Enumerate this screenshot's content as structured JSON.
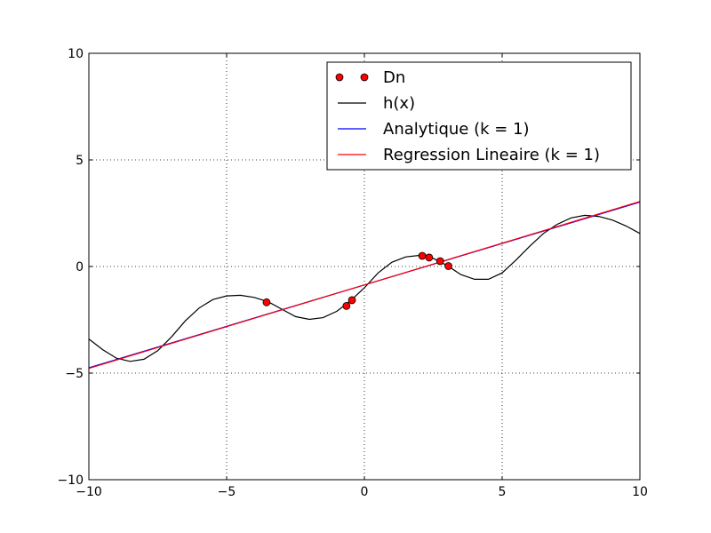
{
  "chart_data": {
    "type": "line",
    "title": "",
    "xlabel": "",
    "ylabel": "",
    "xlim": [
      -10,
      10
    ],
    "ylim": [
      -10,
      10
    ],
    "xticks": [
      -10,
      -5,
      0,
      5,
      10
    ],
    "yticks": [
      -10,
      -5,
      0,
      5,
      10
    ],
    "xtick_labels": [
      "−10",
      "−5",
      "0",
      "5",
      "10"
    ],
    "ytick_labels": [
      "−10",
      "−5",
      "0",
      "5",
      "10"
    ],
    "grid": true,
    "legend_position": "top-right",
    "series": [
      {
        "name": "Dn",
        "kind": "scatter",
        "color": "#ff0000",
        "points": [
          [
            -3.55,
            -1.68
          ],
          [
            -0.65,
            -1.85
          ],
          [
            -0.45,
            -1.58
          ],
          [
            2.1,
            0.5
          ],
          [
            2.35,
            0.42
          ],
          [
            2.75,
            0.25
          ],
          [
            3.05,
            0.02
          ]
        ]
      },
      {
        "name": "h(x)",
        "kind": "line",
        "color": "#000000",
        "points": [
          [
            -10,
            -3.4
          ],
          [
            -9.5,
            -3.9
          ],
          [
            -9.0,
            -4.3
          ],
          [
            -8.5,
            -4.45
          ],
          [
            -8.0,
            -4.35
          ],
          [
            -7.5,
            -3.95
          ],
          [
            -7.0,
            -3.3
          ],
          [
            -6.5,
            -2.55
          ],
          [
            -6.0,
            -1.95
          ],
          [
            -5.5,
            -1.55
          ],
          [
            -5.0,
            -1.38
          ],
          [
            -4.5,
            -1.35
          ],
          [
            -4.0,
            -1.45
          ],
          [
            -3.5,
            -1.65
          ],
          [
            -3.0,
            -2.0
          ],
          [
            -2.5,
            -2.35
          ],
          [
            -2.0,
            -2.48
          ],
          [
            -1.5,
            -2.4
          ],
          [
            -1.0,
            -2.1
          ],
          [
            -0.5,
            -1.6
          ],
          [
            0.0,
            -1.0
          ],
          [
            0.5,
            -0.3
          ],
          [
            1.0,
            0.2
          ],
          [
            1.5,
            0.45
          ],
          [
            2.0,
            0.52
          ],
          [
            2.5,
            0.38
          ],
          [
            3.0,
            0.05
          ],
          [
            3.5,
            -0.38
          ],
          [
            4.0,
            -0.6
          ],
          [
            4.5,
            -0.6
          ],
          [
            5.0,
            -0.3
          ],
          [
            5.5,
            0.3
          ],
          [
            6.0,
            0.95
          ],
          [
            6.5,
            1.55
          ],
          [
            7.0,
            1.98
          ],
          [
            7.5,
            2.28
          ],
          [
            8.0,
            2.4
          ],
          [
            8.5,
            2.35
          ],
          [
            9.0,
            2.18
          ],
          [
            9.5,
            1.9
          ],
          [
            10.0,
            1.55
          ]
        ]
      },
      {
        "name": "Analytique (k = 1)",
        "kind": "line",
        "color": "#0000ff",
        "points": [
          [
            -10,
            -4.75
          ],
          [
            10,
            3.02
          ]
        ]
      },
      {
        "name": "Regression Lineaire (k = 1)",
        "kind": "line",
        "color": "#ff0000",
        "points": [
          [
            -10,
            -4.78
          ],
          [
            10,
            3.05
          ]
        ]
      }
    ]
  }
}
